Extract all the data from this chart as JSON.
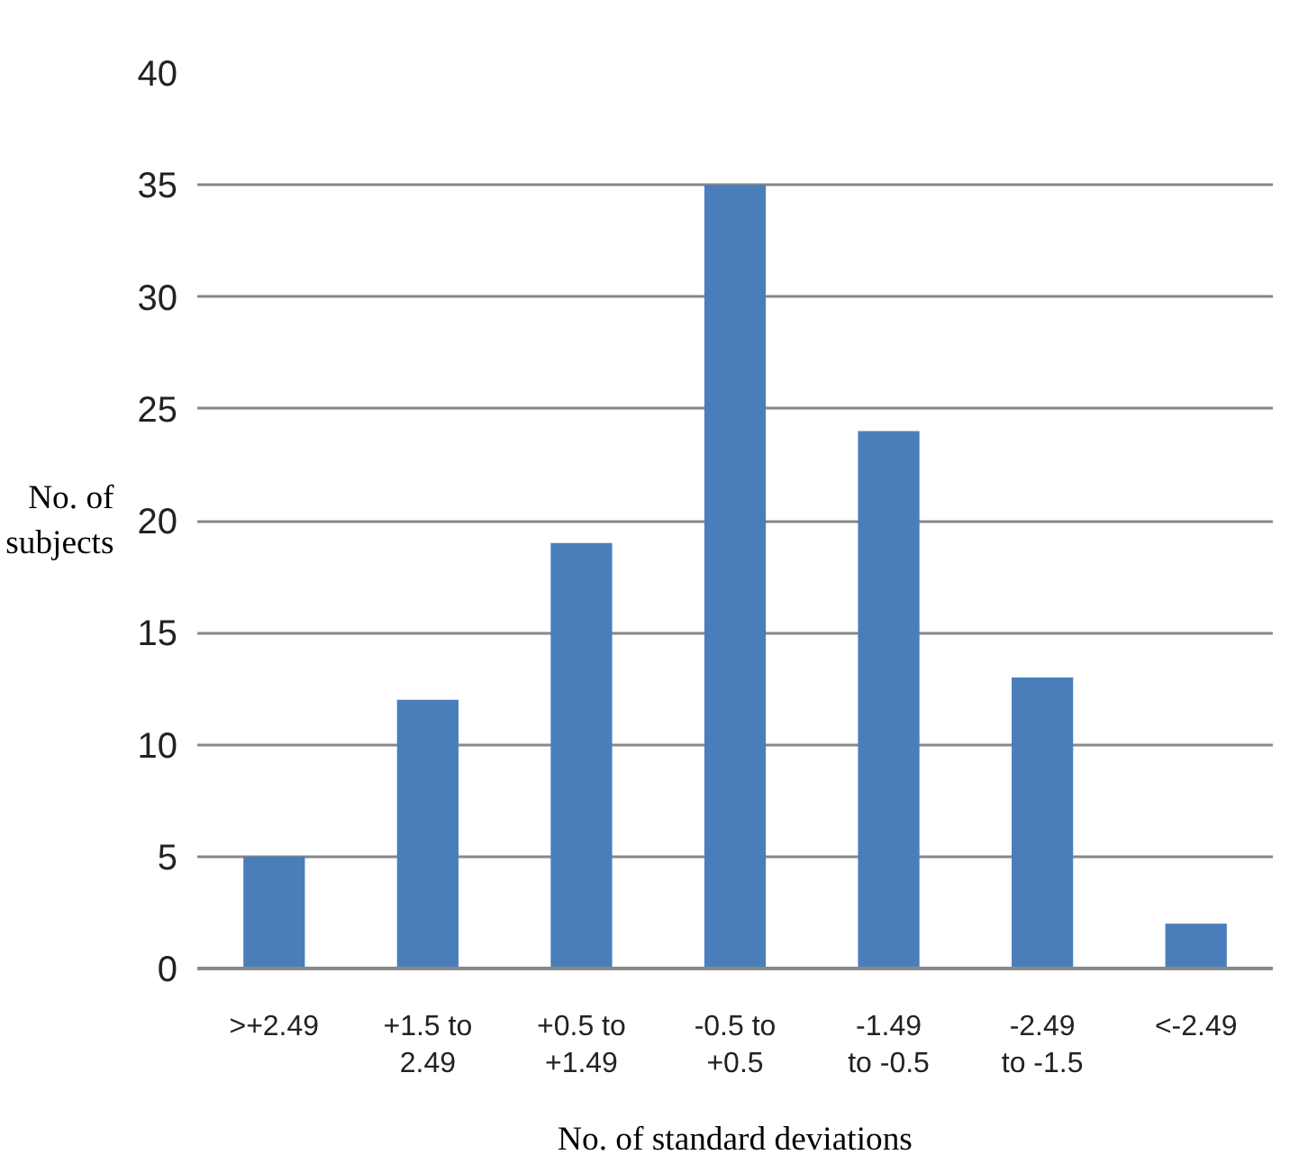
{
  "chart_data": {
    "type": "bar",
    "xlabel": "No. of standard deviations",
    "ylabel": "No. of\nsubjects",
    "categories": [
      ">+2.49",
      "+1.5 to\n2.49",
      "+0.5 to\n+1.49",
      "-0.5 to\n+0.5",
      "-1.49\nto -0.5",
      "-2.49\nto -1.5",
      "<-2.49"
    ],
    "values": [
      5,
      12,
      19,
      35,
      24,
      13,
      2
    ],
    "color": "#4a7ebb",
    "ylim": [
      0,
      40
    ],
    "yticks": [
      0,
      5,
      10,
      15,
      20,
      25,
      30,
      35,
      40
    ],
    "grid": "y"
  }
}
